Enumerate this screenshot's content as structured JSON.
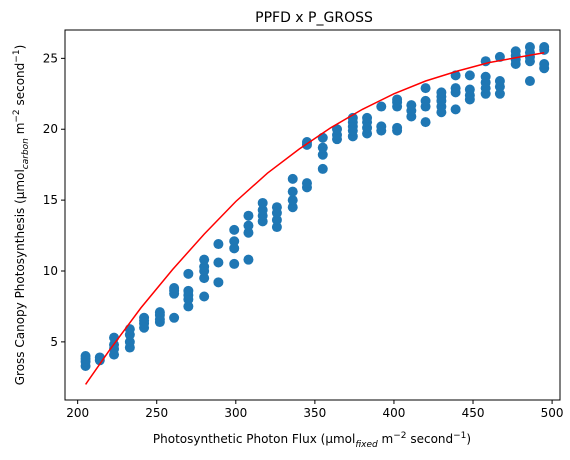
{
  "chart_data": {
    "type": "scatter",
    "title": "PPFD x P_GROSS",
    "xlabel": {
      "pre": "Photosynthetic Photon Flux (μmol",
      "sub": "fixed",
      "mid": " m",
      "sup": "−2",
      "post": " second",
      "sup2": "−1",
      "end": ")"
    },
    "ylabel": {
      "pre": "Gross Canopy Photosynthesis (μmol",
      "sub": "carbon",
      "mid": " m",
      "sup": "−2",
      "post": " second",
      "sup2": "−1",
      "end": ")"
    },
    "xlim": [
      192,
      505
    ],
    "ylim": [
      0.9,
      27.0
    ],
    "x_ticks": [
      200,
      250,
      300,
      350,
      400,
      450,
      500
    ],
    "y_ticks": [
      5,
      10,
      15,
      20,
      25
    ],
    "grid": false,
    "legend": "none",
    "colors": {
      "points": "#1f77b4",
      "fit": "#ff0000",
      "axis": "#000000"
    },
    "series": [
      {
        "kind": "scatter",
        "points": [
          [
            205,
            3.3
          ],
          [
            205,
            3.6
          ],
          [
            205,
            3.8
          ],
          [
            205,
            4.0
          ],
          [
            214,
            3.7
          ],
          [
            214,
            3.9
          ],
          [
            223,
            4.1
          ],
          [
            223,
            4.5
          ],
          [
            223,
            4.8
          ],
          [
            223,
            5.3
          ],
          [
            233,
            4.6
          ],
          [
            233,
            5.0
          ],
          [
            233,
            5.5
          ],
          [
            233,
            5.9
          ],
          [
            242,
            6.0
          ],
          [
            242,
            6.3
          ],
          [
            242,
            6.5
          ],
          [
            242,
            6.7
          ],
          [
            252,
            6.4
          ],
          [
            252,
            6.6
          ],
          [
            252,
            6.9
          ],
          [
            252,
            7.1
          ],
          [
            261,
            6.7
          ],
          [
            261,
            8.4
          ],
          [
            261,
            8.6
          ],
          [
            261,
            8.8
          ],
          [
            270,
            7.5
          ],
          [
            270,
            8.0
          ],
          [
            270,
            8.3
          ],
          [
            270,
            8.6
          ],
          [
            270,
            9.8
          ],
          [
            280,
            8.2
          ],
          [
            280,
            9.5
          ],
          [
            280,
            10.0
          ],
          [
            280,
            10.3
          ],
          [
            280,
            10.8
          ],
          [
            289,
            9.2
          ],
          [
            289,
            10.6
          ],
          [
            289,
            11.9
          ],
          [
            299,
            10.5
          ],
          [
            299,
            11.6
          ],
          [
            299,
            12.1
          ],
          [
            299,
            12.9
          ],
          [
            308,
            10.8
          ],
          [
            308,
            12.7
          ],
          [
            308,
            13.2
          ],
          [
            308,
            13.9
          ],
          [
            317,
            13.5
          ],
          [
            317,
            13.9
          ],
          [
            317,
            14.3
          ],
          [
            317,
            14.8
          ],
          [
            326,
            13.1
          ],
          [
            326,
            13.6
          ],
          [
            326,
            14.1
          ],
          [
            326,
            14.5
          ],
          [
            336,
            14.5
          ],
          [
            336,
            15.0
          ],
          [
            336,
            15.6
          ],
          [
            336,
            16.5
          ],
          [
            345,
            15.9
          ],
          [
            345,
            16.2
          ],
          [
            345,
            18.9
          ],
          [
            345,
            19.1
          ],
          [
            355,
            17.2
          ],
          [
            355,
            18.2
          ],
          [
            355,
            18.7
          ],
          [
            355,
            19.4
          ],
          [
            364,
            19.3
          ],
          [
            364,
            19.6
          ],
          [
            364,
            20.0
          ],
          [
            374,
            19.5
          ],
          [
            374,
            19.9
          ],
          [
            374,
            20.2
          ],
          [
            374,
            20.5
          ],
          [
            374,
            20.8
          ],
          [
            383,
            19.7
          ],
          [
            383,
            20.1
          ],
          [
            383,
            20.5
          ],
          [
            383,
            20.8
          ],
          [
            392,
            19.9
          ],
          [
            392,
            20.2
          ],
          [
            392,
            21.6
          ],
          [
            402,
            19.9
          ],
          [
            402,
            20.1
          ],
          [
            402,
            21.6
          ],
          [
            402,
            21.9
          ],
          [
            402,
            22.1
          ],
          [
            411,
            20.9
          ],
          [
            411,
            21.3
          ],
          [
            411,
            21.7
          ],
          [
            420,
            20.5
          ],
          [
            420,
            21.6
          ],
          [
            420,
            22.0
          ],
          [
            420,
            22.9
          ],
          [
            430,
            21.2
          ],
          [
            430,
            21.6
          ],
          [
            430,
            22.0
          ],
          [
            430,
            22.3
          ],
          [
            430,
            22.6
          ],
          [
            439,
            21.4
          ],
          [
            439,
            22.6
          ],
          [
            439,
            22.9
          ],
          [
            439,
            23.8
          ],
          [
            448,
            22.1
          ],
          [
            448,
            22.4
          ],
          [
            448,
            22.8
          ],
          [
            448,
            23.8
          ],
          [
            458,
            22.5
          ],
          [
            458,
            22.9
          ],
          [
            458,
            23.3
          ],
          [
            458,
            23.7
          ],
          [
            458,
            24.8
          ],
          [
            467,
            22.5
          ],
          [
            467,
            23.0
          ],
          [
            467,
            23.4
          ],
          [
            467,
            25.1
          ],
          [
            477,
            24.6
          ],
          [
            477,
            24.9
          ],
          [
            477,
            25.2
          ],
          [
            477,
            25.5
          ],
          [
            486,
            23.4
          ],
          [
            486,
            24.8
          ],
          [
            486,
            25.1
          ],
          [
            486,
            25.4
          ],
          [
            486,
            25.8
          ],
          [
            495,
            24.3
          ],
          [
            495,
            24.6
          ],
          [
            495,
            25.6
          ],
          [
            495,
            25.8
          ]
        ]
      },
      {
        "kind": "line",
        "points": [
          [
            205,
            2.0
          ],
          [
            220,
            4.4
          ],
          [
            240,
            7.4
          ],
          [
            260,
            10.1
          ],
          [
            280,
            12.6
          ],
          [
            300,
            14.9
          ],
          [
            320,
            16.9
          ],
          [
            340,
            18.6
          ],
          [
            360,
            20.1
          ],
          [
            380,
            21.4
          ],
          [
            400,
            22.5
          ],
          [
            420,
            23.4
          ],
          [
            440,
            24.1
          ],
          [
            460,
            24.7
          ],
          [
            480,
            25.1
          ],
          [
            495,
            25.4
          ]
        ]
      }
    ]
  }
}
